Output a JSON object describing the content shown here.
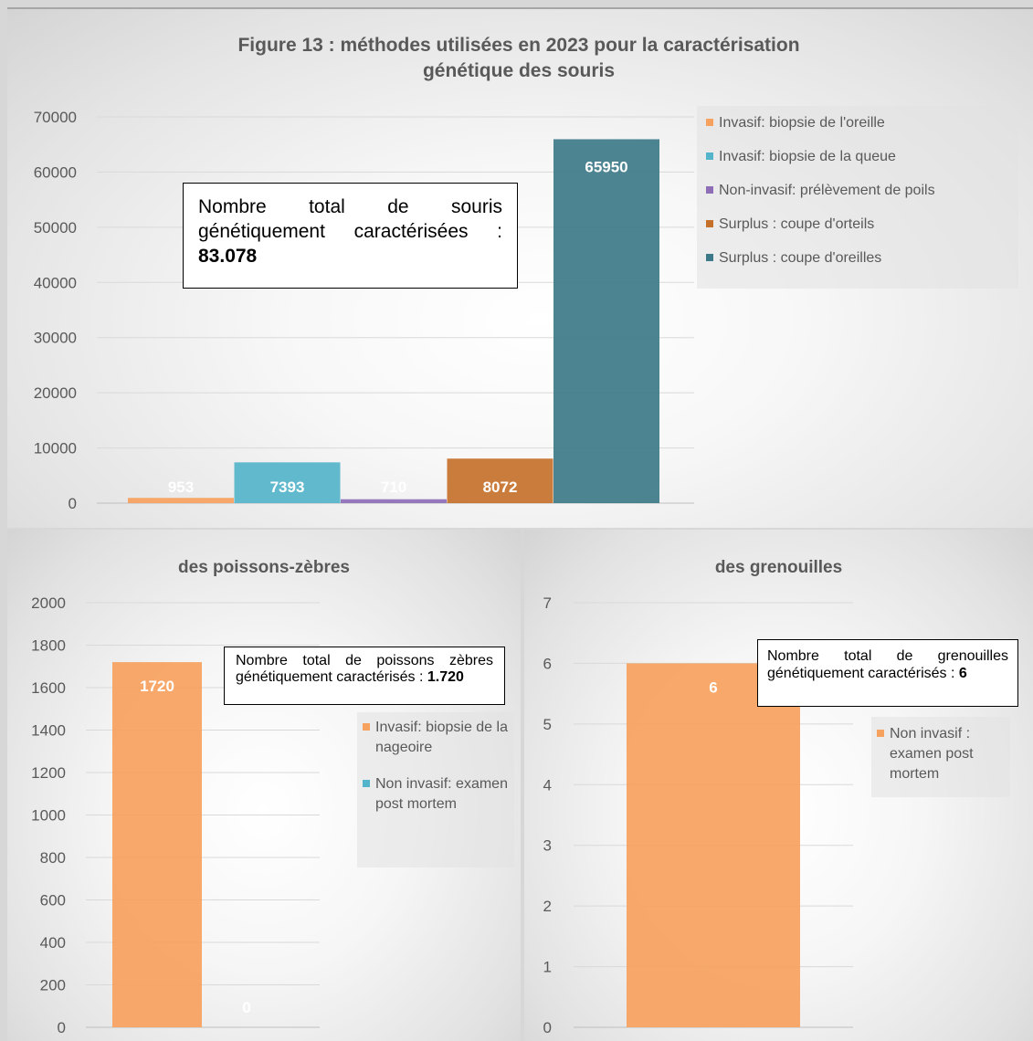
{
  "chart_data": [
    {
      "type": "bar",
      "title": "Figure 13 : méthodes utilisées en 2023 pour la caractérisation génétique des souris",
      "title_lines": [
        "Figure 13 : méthodes utilisées en 2023 pour la caractérisation",
        "génétique des souris"
      ],
      "ylim": [
        0,
        70000
      ],
      "yticks": [
        "0",
        "10000",
        "20000",
        "30000",
        "40000",
        "50000",
        "60000",
        "70000"
      ],
      "grid": true,
      "legend_position": "right",
      "series": [
        {
          "name": "Invasif: biopsie de l'oreille",
          "value": 953,
          "label": "953",
          "color": "#f6a15d"
        },
        {
          "name": "Invasif: biopsie de la queue",
          "value": 7393,
          "label": "7393",
          "color": "#54b4c9"
        },
        {
          "name": "Non-invasif: prélèvement de poils",
          "value": 710,
          "label": "710",
          "color": "#8e6fb7"
        },
        {
          "name": "Surplus :  coupe d'orteils",
          "value": 8072,
          "label": "8072",
          "color": "#c5712b"
        },
        {
          "name": "Surplus : coupe d'oreilles",
          "value": 65950,
          "label": "65950",
          "color": "#3d7a89"
        }
      ],
      "annotation": {
        "text": "Nombre total de souris génétiquement caractérisées : ",
        "bold": "83.078"
      }
    },
    {
      "type": "bar",
      "title": "des poissons-zèbres",
      "ylim": [
        0,
        2000
      ],
      "yticks": [
        "0",
        "200",
        "400",
        "600",
        "800",
        "1000",
        "1200",
        "1400",
        "1600",
        "1800",
        "2000"
      ],
      "grid": true,
      "legend_position": "right",
      "series": [
        {
          "name": "Invasif: biopsie de la nageoire",
          "value": 1720,
          "label": "1720",
          "color": "#f6a15d"
        },
        {
          "name": "Non invasif: examen post mortem",
          "value": 0,
          "label": "0",
          "color": "#54b4c9"
        }
      ],
      "annotation": {
        "text": "Nombre total de poissons zèbres génétiquement caractérisés : ",
        "bold": "1.720"
      }
    },
    {
      "type": "bar",
      "title": "des grenouilles",
      "ylim": [
        0,
        7
      ],
      "yticks": [
        "0",
        "1",
        "2",
        "3",
        "4",
        "5",
        "6",
        "7"
      ],
      "grid": true,
      "legend_position": "right",
      "series": [
        {
          "name": "Non invasif : examen post mortem",
          "value": 6,
          "label": "6",
          "color": "#f6a15d"
        }
      ],
      "annotation": {
        "text": "Nombre total de grenouilles génétiquement caractérisés : ",
        "bold": "6"
      }
    }
  ]
}
